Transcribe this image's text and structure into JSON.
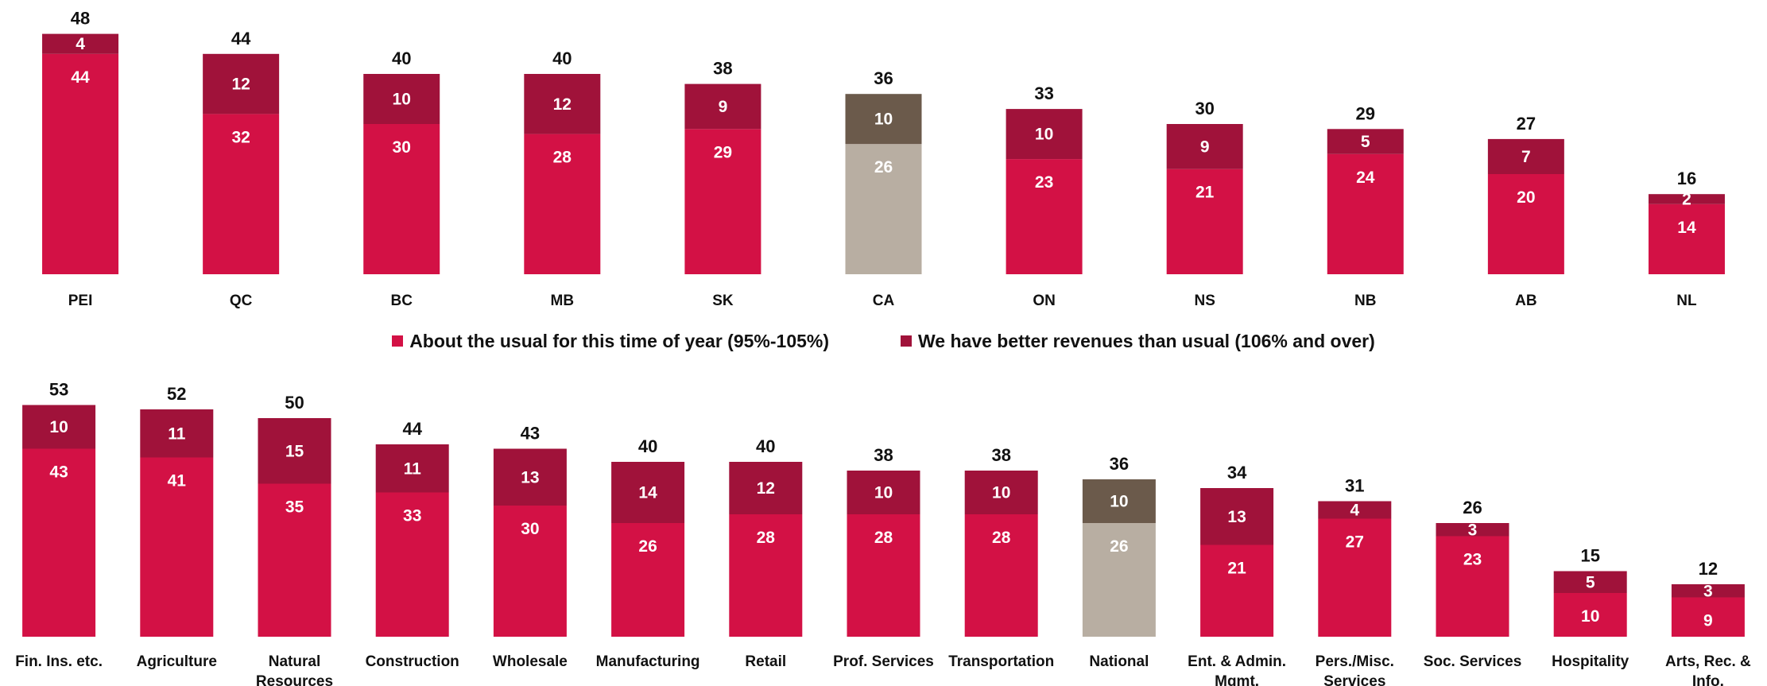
{
  "colors": {
    "usual": "#D31145",
    "better": "#A0123A",
    "highlight_usual": "#B8AEA2",
    "highlight_better": "#6B5A4B",
    "text_dark": "#111111",
    "text_light": "#ffffff"
  },
  "legend": {
    "series_usual": "About the usual for this time of year (95%-105%)",
    "series_better": "We have better revenues than usual (106% and over)"
  },
  "chart_data": [
    {
      "type": "bar",
      "stacked": true,
      "categories": [
        "PEI",
        "QC",
        "BC",
        "MB",
        "SK",
        "CA",
        "ON",
        "NS",
        "NB",
        "AB",
        "NL"
      ],
      "highlight": "CA",
      "series": [
        {
          "name": "About the usual for this time of year (95%-105%)",
          "values": [
            44,
            32,
            30,
            28,
            29,
            26,
            23,
            21,
            24,
            20,
            14
          ]
        },
        {
          "name": "We have better revenues than usual (106% and over)",
          "values": [
            4,
            12,
            10,
            12,
            9,
            10,
            10,
            9,
            5,
            7,
            2
          ]
        }
      ],
      "totals": [
        48,
        44,
        40,
        40,
        38,
        36,
        33,
        30,
        29,
        27,
        16
      ]
    },
    {
      "type": "bar",
      "stacked": true,
      "categories": [
        "Fin. Ins. etc.",
        "Agriculture",
        "Natural Resources",
        "Construction",
        "Wholesale",
        "Manufacturing",
        "Retail",
        "Prof. Services",
        "Transportation",
        "National",
        "Ent. & Admin. Mgmt.",
        "Pers./Misc. Services",
        "Soc. Services",
        "Hospitality",
        "Arts, Rec. & Info."
      ],
      "highlight": "National",
      "series": [
        {
          "name": "About the usual for this time of year (95%-105%)",
          "values": [
            43,
            41,
            35,
            33,
            30,
            26,
            28,
            28,
            28,
            26,
            21,
            27,
            23,
            10,
            9
          ]
        },
        {
          "name": "We have better revenues than usual (106% and over)",
          "values": [
            10,
            11,
            15,
            11,
            13,
            14,
            12,
            10,
            10,
            10,
            13,
            4,
            3,
            5,
            3
          ]
        }
      ],
      "totals": [
        53,
        52,
        50,
        44,
        43,
        40,
        40,
        38,
        38,
        36,
        34,
        31,
        26,
        15,
        12
      ]
    }
  ]
}
